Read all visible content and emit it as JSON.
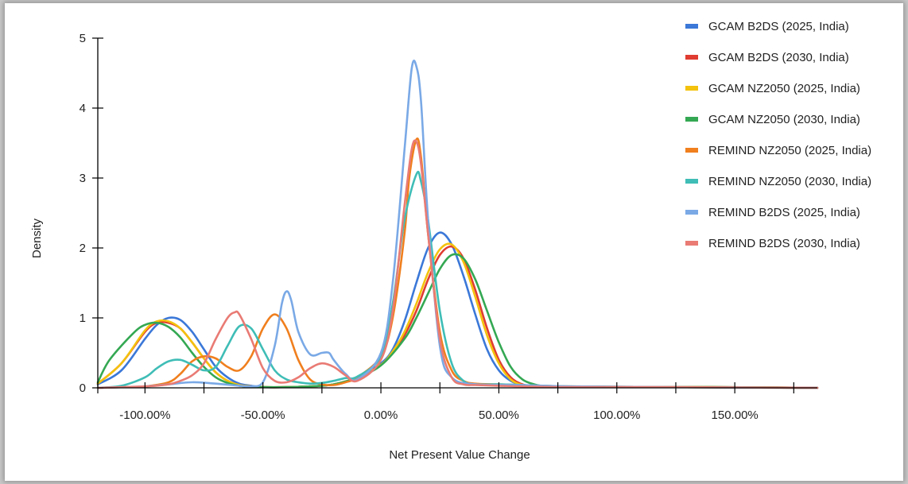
{
  "chart_data": {
    "type": "line",
    "title": "",
    "xlabel": "Net Present Value Change",
    "ylabel": "Density",
    "xlim": [
      -120,
      185
    ],
    "ylim": [
      0,
      5
    ],
    "x_ticks": [
      {
        "value": -100,
        "label": "-100.00%"
      },
      {
        "value": -50,
        "label": "-50.00%"
      },
      {
        "value": 0,
        "label": "0.00%"
      },
      {
        "value": 50,
        "label": "50.00%"
      },
      {
        "value": 100,
        "label": "100.00%"
      },
      {
        "value": 150,
        "label": "150.00%"
      }
    ],
    "x_minor_ticks": [
      -125,
      -75,
      -25,
      25,
      75,
      125,
      175
    ],
    "y_ticks": [
      {
        "value": 0,
        "label": "0"
      },
      {
        "value": 1,
        "label": "1"
      },
      {
        "value": 2,
        "label": "2"
      },
      {
        "value": 3,
        "label": "3"
      },
      {
        "value": 4,
        "label": "4"
      },
      {
        "value": 5,
        "label": "5"
      }
    ],
    "grid": false,
    "legend_position": "top-right",
    "series": [
      {
        "name": "GCAM B2DS (2025, India)",
        "color": "#3b78d8",
        "x": [
          -120,
          -110,
          -100,
          -95,
          -90,
          -85,
          -80,
          -75,
          -70,
          -65,
          -60,
          -55,
          -50,
          -40,
          -30,
          -20,
          -10,
          0,
          5,
          10,
          15,
          20,
          25,
          30,
          35,
          40,
          45,
          50,
          55,
          60,
          65,
          70,
          80,
          100,
          140,
          185
        ],
        "y": [
          0.05,
          0.25,
          0.7,
          0.9,
          1.0,
          0.97,
          0.8,
          0.55,
          0.3,
          0.15,
          0.06,
          0.03,
          0.01,
          0.01,
          0.02,
          0.05,
          0.15,
          0.35,
          0.55,
          0.95,
          1.5,
          2.0,
          2.22,
          2.05,
          1.6,
          1.05,
          0.55,
          0.25,
          0.1,
          0.04,
          0.02,
          0.01,
          0.01,
          0.01,
          0.01,
          0.0
        ]
      },
      {
        "name": "GCAM B2DS (2030, India)",
        "color": "#e03c31",
        "x": [
          -120,
          -110,
          -100,
          -95,
          -90,
          -85,
          -80,
          -75,
          -70,
          -65,
          -60,
          -55,
          -50,
          -40,
          -30,
          -20,
          -10,
          0,
          5,
          10,
          15,
          20,
          25,
          30,
          35,
          40,
          45,
          50,
          55,
          60,
          65,
          70,
          80,
          100,
          140,
          185
        ],
        "y": [
          0.06,
          0.35,
          0.8,
          0.93,
          0.93,
          0.85,
          0.65,
          0.42,
          0.22,
          0.1,
          0.04,
          0.02,
          0.01,
          0.01,
          0.02,
          0.05,
          0.15,
          0.33,
          0.5,
          0.75,
          1.1,
          1.55,
          1.9,
          2.02,
          1.85,
          1.4,
          0.85,
          0.4,
          0.15,
          0.05,
          0.02,
          0.01,
          0.01,
          0.01,
          0.01,
          0.0
        ]
      },
      {
        "name": "GCAM NZ2050 (2025, India)",
        "color": "#f4c20d",
        "x": [
          -120,
          -110,
          -100,
          -95,
          -90,
          -85,
          -80,
          -75,
          -70,
          -65,
          -60,
          -55,
          -50,
          -40,
          -30,
          -20,
          -10,
          0,
          5,
          10,
          15,
          20,
          25,
          30,
          35,
          40,
          45,
          50,
          55,
          60,
          65,
          70,
          80,
          100,
          140,
          185
        ],
        "y": [
          0.06,
          0.35,
          0.82,
          0.95,
          0.95,
          0.85,
          0.65,
          0.42,
          0.22,
          0.1,
          0.04,
          0.02,
          0.01,
          0.01,
          0.02,
          0.05,
          0.15,
          0.33,
          0.52,
          0.8,
          1.2,
          1.65,
          1.98,
          2.05,
          1.8,
          1.3,
          0.75,
          0.35,
          0.12,
          0.04,
          0.02,
          0.01,
          0.01,
          0.01,
          0.01,
          0.0
        ]
      },
      {
        "name": "GCAM NZ2050 (2030, India)",
        "color": "#34a853",
        "x": [
          -125,
          -115,
          -105,
          -100,
          -95,
          -90,
          -85,
          -80,
          -75,
          -70,
          -65,
          -60,
          -55,
          -50,
          -40,
          -30,
          -20,
          -10,
          0,
          10,
          15,
          20,
          25,
          30,
          35,
          40,
          45,
          50,
          55,
          60,
          65,
          70,
          80,
          100,
          140,
          185
        ],
        "y": [
          0.08,
          0.4,
          0.78,
          0.9,
          0.93,
          0.87,
          0.72,
          0.5,
          0.3,
          0.15,
          0.07,
          0.03,
          0.01,
          0.01,
          0.01,
          0.02,
          0.05,
          0.15,
          0.32,
          0.7,
          1.0,
          1.35,
          1.7,
          1.9,
          1.85,
          1.55,
          1.1,
          0.65,
          0.3,
          0.12,
          0.05,
          0.02,
          0.01,
          0.01,
          0.01,
          0.0
        ]
      },
      {
        "name": "REMIND NZ2050 (2025, India)",
        "color": "#f07f1e",
        "x": [
          -120,
          -110,
          -100,
          -90,
          -85,
          -80,
          -75,
          -70,
          -65,
          -60,
          -55,
          -50,
          -45,
          -40,
          -35,
          -30,
          -25,
          -20,
          -15,
          -10,
          0,
          5,
          10,
          12,
          15,
          17,
          20,
          25,
          30,
          35,
          40,
          50,
          60,
          80,
          120,
          185
        ],
        "y": [
          0.0,
          0.01,
          0.02,
          0.08,
          0.2,
          0.38,
          0.45,
          0.42,
          0.3,
          0.25,
          0.45,
          0.85,
          1.05,
          0.85,
          0.4,
          0.12,
          0.05,
          0.04,
          0.08,
          0.15,
          0.45,
          1.0,
          2.2,
          3.0,
          3.55,
          3.3,
          2.2,
          0.8,
          0.25,
          0.1,
          0.06,
          0.05,
          0.04,
          0.02,
          0.01,
          0.0
        ]
      },
      {
        "name": "REMIND NZ2050 (2030, India)",
        "color": "#3fbdb6",
        "x": [
          -120,
          -110,
          -100,
          -95,
          -90,
          -85,
          -80,
          -75,
          -70,
          -65,
          -60,
          -55,
          -50,
          -45,
          -40,
          -35,
          -30,
          -25,
          -20,
          -15,
          -10,
          0,
          5,
          10,
          15,
          17,
          20,
          25,
          30,
          35,
          40,
          50,
          60,
          80,
          120,
          185
        ],
        "y": [
          0.0,
          0.03,
          0.15,
          0.28,
          0.38,
          0.4,
          0.33,
          0.25,
          0.3,
          0.6,
          0.88,
          0.85,
          0.55,
          0.25,
          0.12,
          0.08,
          0.06,
          0.07,
          0.1,
          0.14,
          0.16,
          0.45,
          1.2,
          2.4,
          3.05,
          2.95,
          2.4,
          1.1,
          0.35,
          0.1,
          0.05,
          0.05,
          0.04,
          0.02,
          0.01,
          0.0
        ]
      },
      {
        "name": "REMIND B2DS (2025, India)",
        "color": "#7aa9e6",
        "x": [
          -120,
          -100,
          -90,
          -80,
          -70,
          -60,
          -55,
          -50,
          -45,
          -42,
          -40,
          -38,
          -35,
          -30,
          -25,
          -22,
          -20,
          -15,
          -10,
          0,
          5,
          10,
          13,
          15,
          17,
          20,
          25,
          30,
          40,
          60,
          80,
          120,
          185
        ],
        "y": [
          0.0,
          0.02,
          0.05,
          0.08,
          0.06,
          0.03,
          0.02,
          0.08,
          0.6,
          1.2,
          1.38,
          1.25,
          0.8,
          0.48,
          0.5,
          0.5,
          0.4,
          0.2,
          0.12,
          0.5,
          1.5,
          3.4,
          4.55,
          4.6,
          4.1,
          2.4,
          0.6,
          0.15,
          0.05,
          0.04,
          0.02,
          0.01,
          0.0
        ]
      },
      {
        "name": "REMIND B2DS (2030, India)",
        "color": "#e97b74",
        "x": [
          -120,
          -100,
          -90,
          -85,
          -80,
          -75,
          -70,
          -65,
          -62,
          -60,
          -55,
          -50,
          -45,
          -40,
          -35,
          -30,
          -25,
          -20,
          -15,
          -10,
          0,
          5,
          10,
          13,
          15,
          17,
          20,
          25,
          30,
          35,
          40,
          50,
          60,
          80,
          120,
          185
        ],
        "y": [
          0.0,
          0.02,
          0.05,
          0.1,
          0.18,
          0.35,
          0.7,
          1.0,
          1.08,
          1.05,
          0.7,
          0.28,
          0.1,
          0.08,
          0.15,
          0.28,
          0.35,
          0.3,
          0.18,
          0.1,
          0.4,
          1.1,
          2.6,
          3.4,
          3.52,
          3.2,
          2.2,
          0.7,
          0.15,
          0.05,
          0.04,
          0.03,
          0.02,
          0.01,
          0.01,
          0.0
        ]
      }
    ]
  }
}
